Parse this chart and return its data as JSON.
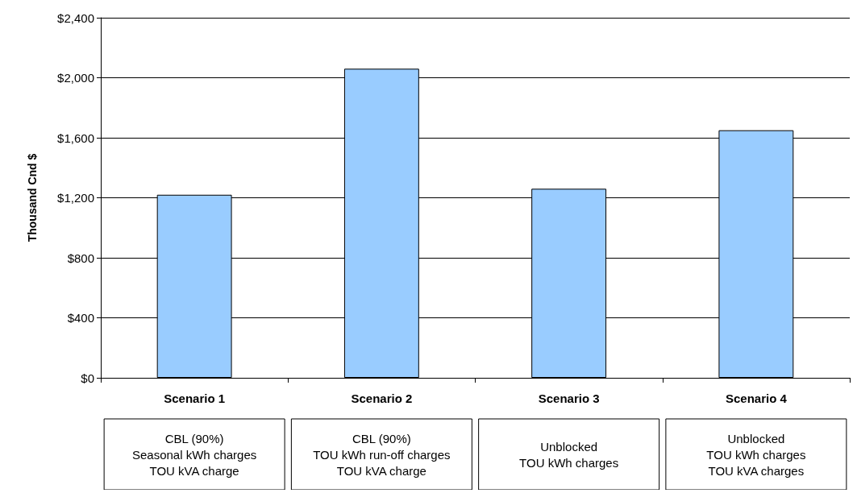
{
  "chart_data": {
    "type": "bar",
    "ylabel": "Thousand Cnd $",
    "categories": [
      "Scenario 1",
      "Scenario 2",
      "Scenario 3",
      "Scenario 4"
    ],
    "values": [
      1220,
      2060,
      1260,
      1650
    ],
    "color": "#99ccff",
    "ylim": [
      0,
      2400
    ],
    "yticks": [
      {
        "value": 0,
        "label": "$0"
      },
      {
        "value": 400,
        "label": "$400"
      },
      {
        "value": 800,
        "label": "$800"
      },
      {
        "value": 1200,
        "label": "$1,200"
      },
      {
        "value": 1600,
        "label": "$1,600"
      },
      {
        "value": 2000,
        "label": "$2,000"
      },
      {
        "value": 2400,
        "label": "$2,400"
      }
    ],
    "grid": "y",
    "annotations": [
      "CBL (90%)\nSeasonal kWh charges\nTOU kVA charge",
      "CBL (90%)\nTOU kWh run-off charges\nTOU kVA charge",
      "Unblocked\nTOU kWh charges",
      "Unblocked\nTOU kWh charges\nTOU kVA charges"
    ]
  }
}
